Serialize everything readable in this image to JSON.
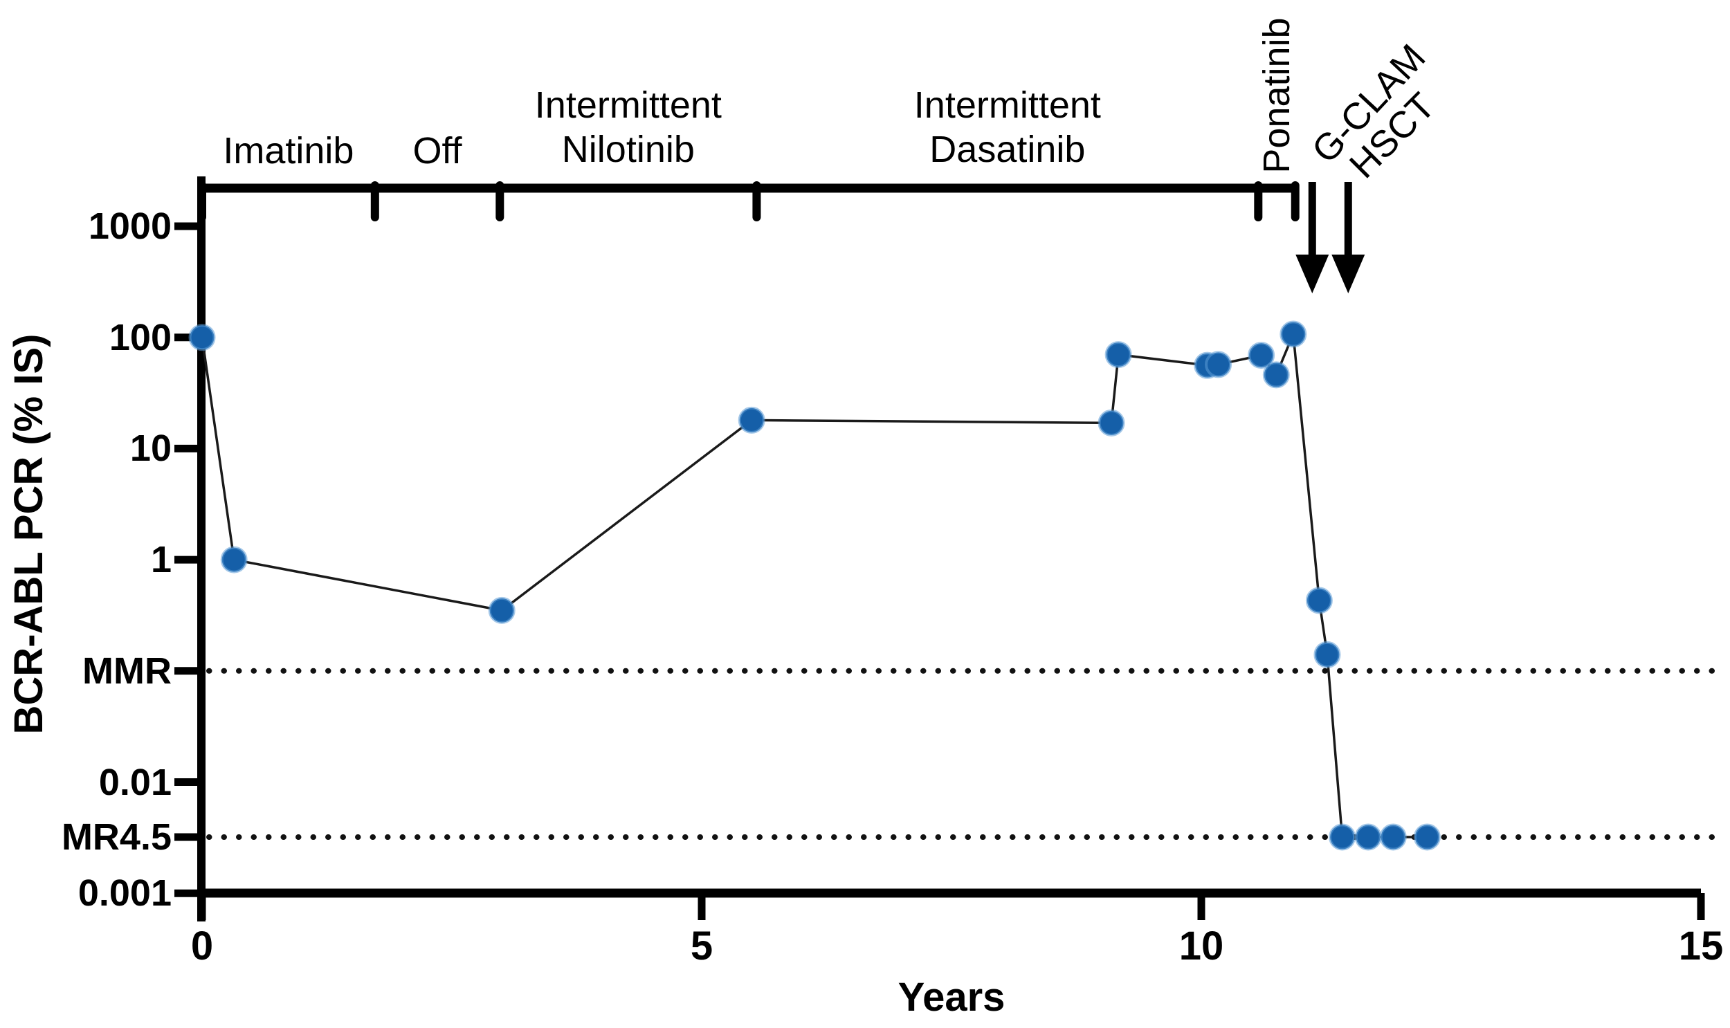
{
  "chart_data": {
    "type": "line",
    "title": "",
    "xlabel": "Years",
    "ylabel": "BCR-ABL PCR (% IS)",
    "x_ticks": [
      "0",
      "5",
      "10",
      "15"
    ],
    "x_tick_values": [
      0,
      5,
      10,
      15
    ],
    "xlim": [
      0,
      15
    ],
    "y_scale": "log",
    "ylim": [
      0.001,
      1000
    ],
    "y_ticks": [
      {
        "label": "1000",
        "value": 1000
      },
      {
        "label": "100",
        "value": 100
      },
      {
        "label": "10",
        "value": 10
      },
      {
        "label": "1",
        "value": 1
      },
      {
        "label": "MMR",
        "value": 0.1
      },
      {
        "label": "0.01",
        "value": 0.01
      },
      {
        "label": "MR4.5",
        "value": 0.0032
      },
      {
        "label": "0.001",
        "value": 0.001
      }
    ],
    "reference_lines": [
      {
        "label": "MMR",
        "value": 0.1,
        "style": "dotted"
      },
      {
        "label": "MR4.5",
        "value": 0.0032,
        "style": "dotted"
      }
    ],
    "series": [
      {
        "name": "BCR-ABL PCR (% IS)",
        "marker_color": "#155fa8",
        "marker_halo": "#5b9bd5",
        "line_color": "#1a1a1a",
        "points": [
          {
            "x": 0.0,
            "y": 100
          },
          {
            "x": 0.32,
            "y": 1.0
          },
          {
            "x": 3.0,
            "y": 0.35
          },
          {
            "x": 5.5,
            "y": 18
          },
          {
            "x": 9.1,
            "y": 17
          },
          {
            "x": 9.17,
            "y": 70
          },
          {
            "x": 10.06,
            "y": 56
          },
          {
            "x": 10.17,
            "y": 57
          },
          {
            "x": 10.6,
            "y": 69
          },
          {
            "x": 10.75,
            "y": 46
          },
          {
            "x": 10.92,
            "y": 107
          },
          {
            "x": 11.18,
            "y": 0.43
          },
          {
            "x": 11.26,
            "y": 0.14
          },
          {
            "x": 11.41,
            "y": 0.0032
          },
          {
            "x": 11.67,
            "y": 0.0032
          },
          {
            "x": 11.92,
            "y": 0.0032
          },
          {
            "x": 12.26,
            "y": 0.0032
          }
        ]
      }
    ],
    "treatment_bracket": {
      "segments": [
        {
          "label_lines": [
            "Imatinib"
          ],
          "start": 0,
          "end": 1.73,
          "rotated": false
        },
        {
          "label_lines": [
            "Off"
          ],
          "start": 1.73,
          "end": 2.98,
          "rotated": false
        },
        {
          "label_lines": [
            "Intermittent",
            "Nilotinib"
          ],
          "start": 2.98,
          "end": 5.55,
          "rotated": false
        },
        {
          "label_lines": [
            "Intermittent",
            "Dasatinib"
          ],
          "start": 5.55,
          "end": 10.57,
          "rotated": false
        },
        {
          "label_lines": [
            "Ponatinib"
          ],
          "start": 10.57,
          "end": 10.94,
          "rotated": true
        }
      ]
    },
    "event_arrows": [
      {
        "label": "G-CLAM",
        "x": 11.11
      },
      {
        "label": "HSCT",
        "x": 11.47
      }
    ],
    "colors": {
      "axis": "#000000",
      "marker": "#155fa8",
      "line": "#1a1a1a",
      "background": "#ffffff"
    }
  }
}
